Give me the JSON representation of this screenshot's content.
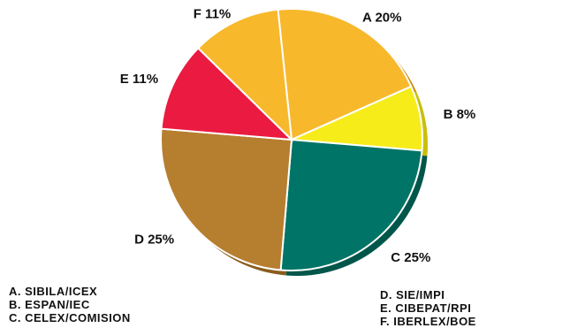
{
  "chart_data": {
    "type": "pie",
    "slices": [
      {
        "key": "A",
        "value": 20,
        "label": "A 20%",
        "color": "#f7b82c",
        "shade": "#c98d12"
      },
      {
        "key": "B",
        "value": 8,
        "label": "B 8%",
        "color": "#f5ec1a",
        "shade": "#c9bf0a"
      },
      {
        "key": "C",
        "value": 25,
        "label": "C 25%",
        "color": "#007466",
        "shade": "#00564a"
      },
      {
        "key": "D",
        "value": 25,
        "label": "D 25%",
        "color": "#b67e2f",
        "shade": "#8a5c1c"
      },
      {
        "key": "E",
        "value": 11,
        "label": "E 11%",
        "color": "#ea1a40",
        "shade": "#b20f2c"
      },
      {
        "key": "F",
        "value": 11,
        "label": "F 11%",
        "color": "#f7b82c",
        "shade": "#c98d12"
      }
    ],
    "legend": [
      {
        "text": "A. SIBILA/ICEX"
      },
      {
        "text": "B. ESPAN/IEC"
      },
      {
        "text": "C. CELEX/COMISION"
      },
      {
        "text": "D. SIE/IMPI"
      },
      {
        "text": "E. CIBEPAT/RPI"
      },
      {
        "text": "F. IBERLEX/BOE"
      }
    ],
    "legend_placement": "bottom"
  }
}
